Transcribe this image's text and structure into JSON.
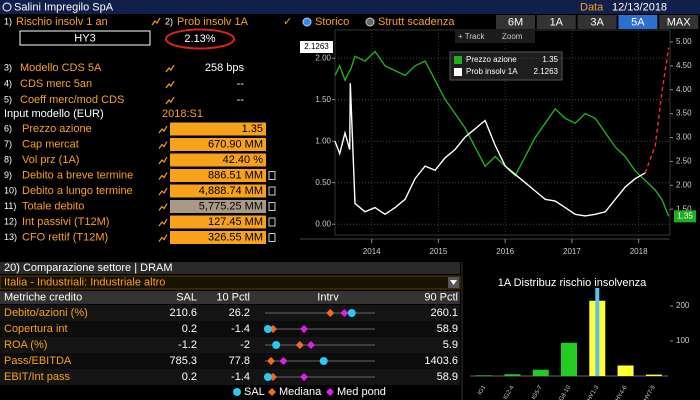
{
  "header": {
    "title": "Salini Impregilo SpA",
    "date_label": "Data",
    "date": "12/13/2018"
  },
  "risk": {
    "items": [
      {
        "num": "1)",
        "label": "Rischio insolv 1 an"
      },
      {
        "num": "2)",
        "label": "Prob insolv 1A"
      }
    ],
    "check": "✓",
    "rating": "HY3",
    "probability": "2.13%",
    "fields": [
      {
        "num": "3)",
        "label": "Modello CDS 5A",
        "value": "258 bps"
      },
      {
        "num": "4)",
        "label": "CDS merc 5an",
        "value": "--"
      },
      {
        "num": "5)",
        "label": "Coeff merc/mod CDS",
        "value": "--"
      }
    ]
  },
  "inputs": {
    "title": "Input modello (EUR)",
    "period": "2018:S1",
    "rows": [
      {
        "num": "6)",
        "label": "Prezzo azione",
        "value": "1.35"
      },
      {
        "num": "7)",
        "label": "Cap mercat",
        "value": "670.90 MM"
      },
      {
        "num": "8)",
        "label": "Vol prz (1A)",
        "value": "42.40 %"
      },
      {
        "num": "9)",
        "label": "Debito a breve termine",
        "value": "886.51 MM"
      },
      {
        "num": "10)",
        "label": "Debito a lungo termine",
        "value": "4,888.74 MM"
      },
      {
        "num": "11)",
        "label": "Totale debito",
        "value": "5,775.25 MM",
        "computed": true
      },
      {
        "num": "12)",
        "label": "Int passivi (T12M)",
        "value": "127.45 MM"
      },
      {
        "num": "13)",
        "label": "CFO rettif (T12M)",
        "value": "326.55 MM"
      }
    ]
  },
  "controls": {
    "modes": [
      "Storico",
      "Strutt scadenza"
    ],
    "active_mode": 0,
    "periods": [
      "6M",
      "1A",
      "3A",
      "5A",
      "MAX"
    ],
    "active_period": 3,
    "track": "+ Track",
    "zoom": "Zoom"
  },
  "chart_data": [
    {
      "type": "line",
      "grid": true,
      "x": [
        2013.95,
        2014.02,
        2014.1,
        2014.17,
        2014.18,
        2014.25,
        2014.4,
        2014.55,
        2014.7,
        2014.85,
        2015.0,
        2015.15,
        2015.3,
        2015.45,
        2015.6,
        2015.75,
        2015.9,
        2016.05,
        2016.2,
        2016.35,
        2016.5,
        2016.65,
        2016.8,
        2016.95,
        2017.1,
        2017.25,
        2017.4,
        2017.55,
        2017.7,
        2017.85,
        2018.0,
        2018.15,
        2018.3,
        2018.45,
        2018.6,
        2018.75,
        2018.85,
        2018.95
      ],
      "xlim": [
        2013.95,
        2018.97
      ],
      "xticks": [
        {
          "value": 2014.5,
          "label": "2014"
        },
        {
          "value": 2015.5,
          "label": "2015"
        },
        {
          "value": 2016.5,
          "label": "2016"
        },
        {
          "value": 2017.5,
          "label": "2017"
        },
        {
          "value": 2018.5,
          "label": "2018"
        }
      ],
      "ylim": [
        -0.13,
        2.34
      ],
      "yticks": [
        {
          "value": 0,
          "label": "0.00"
        },
        {
          "value": 0.5,
          "label": "0.50"
        },
        {
          "value": 1,
          "label": "1.00"
        },
        {
          "value": 1.5,
          "label": "1.50"
        },
        {
          "value": 2,
          "label": "2.00"
        }
      ],
      "y2lim": [
        0.96,
        5.25
      ],
      "y2ticks": [
        {
          "value": 1.5,
          "label": "1.50"
        },
        {
          "value": 2,
          "label": "2.00"
        },
        {
          "value": 2.5,
          "label": "2.50"
        },
        {
          "value": 3,
          "label": "3.00"
        },
        {
          "value": 3.5,
          "label": "3.50"
        },
        {
          "value": 4,
          "label": "4.00"
        },
        {
          "value": 4.5,
          "label": "4.50"
        },
        {
          "value": 5,
          "label": "5.00"
        }
      ],
      "series": [
        {
          "name": "Prezzo azione",
          "last_label": "1.35",
          "color": "#1fae1f",
          "axis": "y2",
          "values": [
            4.3,
            4.5,
            4.2,
            4.4,
            4.4,
            4.7,
            4.6,
            4.8,
            4.5,
            4.4,
            4.3,
            4.5,
            4.6,
            4.2,
            3.8,
            3.5,
            3.2,
            2.8,
            2.4,
            2.6,
            2.4,
            2.2,
            2.6,
            3.0,
            3.3,
            3.6,
            3.4,
            3.3,
            3.5,
            3.4,
            3.1,
            2.8,
            2.6,
            2.3,
            2.1,
            1.9,
            1.7,
            1.35
          ]
        },
        {
          "name": "Prob insolv 1A",
          "last_label": "2.1263",
          "color": "#ffffff",
          "values": [
            1.0,
            0.85,
            1.1,
            0.9,
            1.7,
            0.25,
            0.15,
            0.2,
            0.12,
            0.2,
            0.3,
            0.55,
            0.7,
            0.65,
            0.8,
            0.9,
            1.05,
            1.15,
            1.25,
            0.95,
            0.7,
            0.6,
            0.5,
            0.4,
            0.3,
            0.28,
            0.2,
            0.12,
            0.1,
            0.12,
            0.15,
            0.3,
            0.45,
            0.55,
            0.62,
            null,
            null,
            null
          ]
        },
        {
          "color": "#ff2a2a",
          "dash": true,
          "values": [
            null,
            null,
            null,
            null,
            null,
            null,
            null,
            null,
            null,
            null,
            null,
            null,
            null,
            null,
            null,
            null,
            null,
            null,
            null,
            null,
            null,
            null,
            null,
            null,
            null,
            null,
            null,
            null,
            null,
            null,
            null,
            null,
            null,
            null,
            0.62,
            0.95,
            1.6,
            2.1263
          ]
        }
      ]
    },
    {
      "type": "bar",
      "title": "1A Distribuz rischio insolvenza",
      "categories": [
        "IG1",
        "IG2-4",
        "IG5-7",
        "IG8-10",
        "HY1-3",
        "HY4-6",
        "HY7-9"
      ],
      "values": [
        2,
        5,
        18,
        95,
        215,
        30,
        4
      ],
      "colors": [
        "#22cc22",
        "#22cc22",
        "#22cc22",
        "#22cc22",
        "#ffff33",
        "#ffff33",
        "#ffff33"
      ],
      "highlight": 4,
      "ylim": [
        0,
        240
      ],
      "yticks": [
        100,
        200
      ]
    }
  ],
  "sector": {
    "title": "20) Comparazione settore | DRAM",
    "filter": "Italia - Industriali: Industriale altro",
    "headers": [
      "Metriche credito",
      "SAL",
      "10 Pctl",
      "Intrv",
      "90 Pctl"
    ],
    "rows": [
      {
        "metric": "Debito/azioni (%)",
        "sal": 210.6,
        "p10": 26.2,
        "p90": 260.1,
        "median": 165,
        "weighted_median": 195
      },
      {
        "metric": "Copertura int",
        "sal": 0.2,
        "p10": -1.4,
        "p90": 58.9,
        "median": 3,
        "weighted_median": 20
      },
      {
        "metric": "ROA (%)",
        "sal": -1.2,
        "p10": -2.0,
        "p90": 5.9,
        "median": 0.5,
        "weighted_median": 1.3
      },
      {
        "metric": "Pass/EBITDA",
        "sal": 785.3,
        "p10": 77.8,
        "p90": 1403.6,
        "median": 150,
        "weighted_median": 300
      },
      {
        "metric": "EBIT/Int pass",
        "sal": 0.2,
        "p10": -1.4,
        "p90": 58.9,
        "median": 3,
        "weighted_median": 20
      }
    ],
    "legend": [
      "SAL",
      "Mediana",
      "Med pond"
    ]
  }
}
